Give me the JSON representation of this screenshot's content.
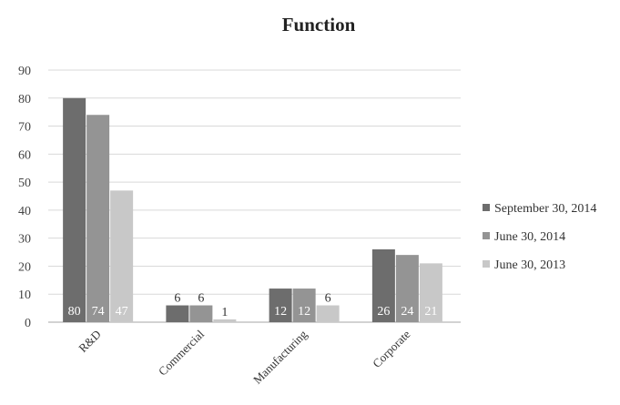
{
  "chart_data": {
    "type": "bar",
    "title": "Function",
    "xlabel": "",
    "ylabel": "",
    "ylim": [
      0,
      90
    ],
    "yticks": [
      "0",
      "10",
      "20",
      "30",
      "40",
      "50",
      "60",
      "70",
      "80",
      "90"
    ],
    "categories": [
      "R&D",
      "Commercial",
      "Manufacturing",
      "Corporate"
    ],
    "series": [
      {
        "name": "September 30, 2014",
        "color": "#6d6d6d",
        "values": [
          80,
          6,
          12,
          26
        ]
      },
      {
        "name": "June 30, 2014",
        "color": "#949494",
        "values": [
          74,
          6,
          12,
          24
        ]
      },
      {
        "name": "June 30, 2013",
        "color": "#c8c8c8",
        "values": [
          47,
          1,
          6,
          21
        ]
      }
    ],
    "grid": true,
    "legend_position": "right",
    "data_labels": true
  }
}
